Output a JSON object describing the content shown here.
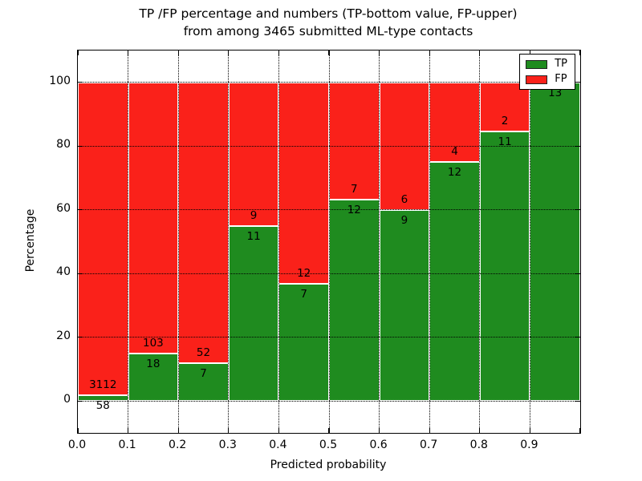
{
  "title": {
    "line1": "TP /FP percentage and numbers (TP-bottom value, FP-upper)",
    "line2": "from among 3465 submitted ML-type contacts"
  },
  "chart_data": {
    "type": "bar",
    "stacked": true,
    "normalized": "each bar scaled to 100%",
    "bins": [
      "0.0-0.1",
      "0.1-0.2",
      "0.2-0.3",
      "0.3-0.4",
      "0.4-0.5",
      "0.5-0.6",
      "0.6-0.7",
      "0.7-0.8",
      "0.8-0.9",
      "0.9-1.0"
    ],
    "series": [
      {
        "name": "TP",
        "color": "#1f8b1f",
        "counts": [
          58,
          18,
          7,
          11,
          7,
          12,
          9,
          12,
          11,
          13
        ],
        "percent": [
          1.83,
          14.88,
          11.86,
          55.0,
          36.84,
          63.16,
          60.0,
          75.0,
          84.62,
          100.0
        ]
      },
      {
        "name": "FP",
        "color": "#fa211a",
        "counts": [
          3112,
          103,
          52,
          9,
          12,
          7,
          6,
          4,
          2,
          0
        ],
        "percent": [
          98.17,
          85.12,
          88.14,
          45.0,
          63.16,
          36.84,
          40.0,
          25.0,
          15.38,
          0.0
        ]
      }
    ],
    "total_contacts": 3465,
    "xlabel": "Predicted probability",
    "ylabel": "Percentage",
    "xticks": [
      "0.0",
      "0.1",
      "0.2",
      "0.3",
      "0.4",
      "0.5",
      "0.6",
      "0.7",
      "0.8",
      "0.9"
    ],
    "yticks": [
      0,
      20,
      40,
      60,
      80,
      100
    ],
    "xlim": [
      0.0,
      1.0
    ],
    "ylim": [
      -10,
      110
    ],
    "grid": "dotted black, horizontal and vertical at every tick",
    "legend": {
      "position": "upper right",
      "entries": [
        {
          "label": "TP",
          "color": "#1f8b1f"
        },
        {
          "label": "FP",
          "color": "#fa211a"
        }
      ]
    }
  }
}
